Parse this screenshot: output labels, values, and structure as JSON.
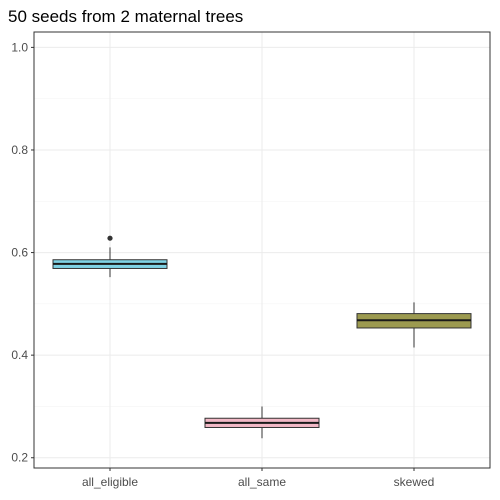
{
  "chart_data": {
    "type": "boxplot",
    "title": "50 seeds from 2 maternal trees",
    "xlabel": "",
    "ylabel": "",
    "ylim": [
      0.18,
      1.03
    ],
    "yticks": [
      0.2,
      0.4,
      0.6,
      0.8,
      1.0
    ],
    "ytick_labels": [
      "0.2",
      "0.4",
      "0.6",
      "0.8",
      "1.0"
    ],
    "categories": [
      "all_eligible",
      "all_same",
      "skewed"
    ],
    "grid": true,
    "legend": "none",
    "boxes": [
      {
        "category": "all_eligible",
        "whisker_low": 0.552,
        "q1": 0.569,
        "median": 0.578,
        "q3": 0.586,
        "whisker_high": 0.61,
        "outliers": [
          0.628
        ],
        "color": "#7fd2e4"
      },
      {
        "category": "all_same",
        "whisker_low": 0.238,
        "q1": 0.259,
        "median": 0.268,
        "q3": 0.277,
        "whisker_high": 0.3,
        "outliers": [],
        "color": "#f2b8c6"
      },
      {
        "category": "skewed",
        "whisker_low": 0.415,
        "q1": 0.453,
        "median": 0.468,
        "q3": 0.481,
        "whisker_high": 0.503,
        "outliers": [],
        "color": "#9c9a50"
      }
    ]
  }
}
